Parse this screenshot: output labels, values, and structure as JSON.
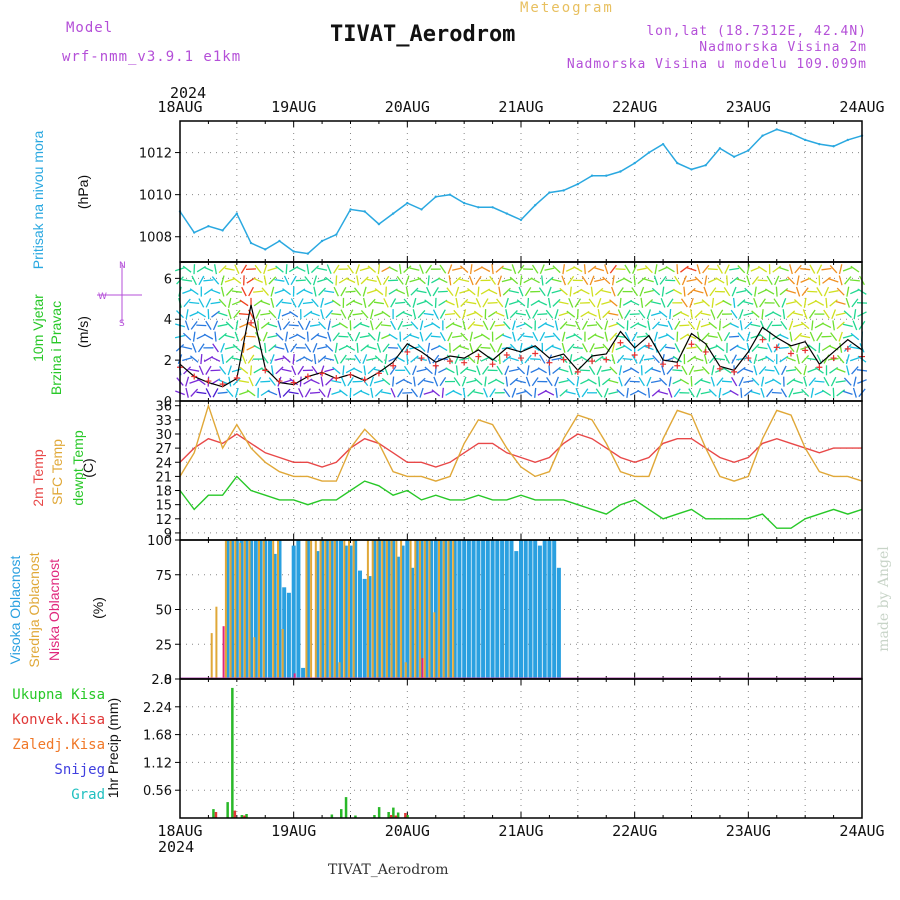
{
  "header": {
    "model_label": "Model",
    "model_name": "wrf-nmm_v3.9.1 e1km",
    "title": "TIVAT_Aerodrom",
    "subtitle": "Meteogram",
    "lonlat": "lon,lat (18.7312E, 42.4N)",
    "elev": "Nadmorska Visina 2m",
    "elev_model": "Nadmorska Visina u modelu 109.099m",
    "footer_station": "TIVAT_Aerodrom",
    "credit": "made by Angel"
  },
  "axis": {
    "year": "2024",
    "dates": [
      "18AUG",
      "19AUG",
      "20AUG",
      "21AUG",
      "22AUG",
      "23AUG",
      "24AUG"
    ]
  },
  "labels": {
    "p1_name": "Pritisak na nivou mora",
    "p1_unit": "(hPa)",
    "p2_name1": "10m Vjetar",
    "p2_name2": "Brzina i Pravac",
    "p2_unit": "(m/s)",
    "p3_name1": "2m Temp",
    "p3_name2": "SFC Temp",
    "p3_name3": "dewpt Temp",
    "p3_unit": "(C)",
    "p4_name1": "Visoka Oblacnost",
    "p4_name2": "Srednja Oblacnost",
    "p4_name3": "Niska Oblacnost",
    "p4_unit": "(%)",
    "p5_name": "1hr Precip (mm)",
    "precip_legend": [
      "Ukupna Kisa",
      "Konvek.Kisa",
      "Zaledj.Kisa",
      "Snijeg",
      "Grad"
    ]
  },
  "compass": {
    "n": "N",
    "s": "S",
    "w": "W",
    "e": "E"
  },
  "colors": {
    "pressure": "#2aa8e0",
    "temp2m": "#e84848",
    "sfc": "#e0a838",
    "dew": "#28c828",
    "high_cloud": "#2aa0e0",
    "mid_cloud": "#e0a838",
    "low_cloud": "#e0287c",
    "total_rain": "#28b828",
    "conv_rain": "#e03838",
    "frz_rain": "#f07828",
    "snow": "#4040e0",
    "hail": "#20c0c0",
    "model_purple": "#b44fd8",
    "meteogram_gold": "#e8c060"
  },
  "chart_data": [
    {
      "type": "line",
      "name": "pressure",
      "ylabel": "(hPa)",
      "yticks": [
        1008,
        1010,
        1012
      ],
      "ylim": [
        1006.8,
        1013.5
      ],
      "x_hours": [
        0,
        3,
        6,
        9,
        12,
        15,
        18,
        21,
        24,
        27,
        30,
        33,
        36,
        39,
        42,
        45,
        48,
        51,
        54,
        57,
        60,
        63,
        66,
        69,
        72,
        75,
        78,
        81,
        84,
        87,
        90,
        93,
        96,
        99,
        102,
        105,
        108,
        111,
        114,
        117,
        120,
        123,
        126,
        129,
        132,
        135,
        138,
        141,
        144
      ],
      "values": [
        1009.2,
        1008.2,
        1008.5,
        1008.3,
        1009.1,
        1007.7,
        1007.4,
        1007.8,
        1007.3,
        1007.2,
        1007.8,
        1008.1,
        1009.3,
        1009.2,
        1008.6,
        1009.1,
        1009.6,
        1009.3,
        1009.9,
        1010.0,
        1009.6,
        1009.4,
        1009.4,
        1009.1,
        1008.8,
        1009.5,
        1010.1,
        1010.2,
        1010.5,
        1010.9,
        1010.9,
        1011.1,
        1011.5,
        1012.0,
        1012.4,
        1011.5,
        1011.2,
        1011.4,
        1012.2,
        1011.8,
        1012.1,
        1012.8,
        1013.1,
        1012.9,
        1012.6,
        1012.4,
        1012.3,
        1012.6,
        1012.8
      ],
      "grid": true
    },
    {
      "type": "line",
      "name": "wind speed",
      "ylabel": "(m/s)",
      "yticks": [
        0,
        2,
        4,
        6
      ],
      "ylim": [
        0,
        6.8
      ],
      "x_hours": [
        0,
        3,
        6,
        9,
        12,
        15,
        18,
        21,
        24,
        27,
        30,
        33,
        36,
        39,
        42,
        45,
        48,
        51,
        54,
        57,
        60,
        63,
        66,
        69,
        72,
        75,
        78,
        81,
        84,
        87,
        90,
        93,
        96,
        99,
        102,
        105,
        108,
        111,
        114,
        117,
        120,
        123,
        126,
        129,
        132,
        135,
        138,
        141,
        144
      ],
      "values": [
        1.8,
        1.2,
        0.9,
        0.7,
        1.1,
        4.7,
        1.6,
        0.9,
        0.8,
        1.2,
        1.4,
        1.1,
        1.3,
        1.0,
        1.4,
        1.9,
        2.8,
        2.4,
        1.9,
        2.2,
        2.1,
        2.5,
        2.0,
        2.6,
        2.4,
        2.7,
        2.1,
        2.3,
        1.5,
        2.2,
        2.3,
        3.4,
        2.6,
        3.2,
        2.0,
        1.9,
        3.3,
        2.8,
        1.7,
        1.5,
        2.4,
        3.6,
        3.1,
        2.7,
        2.9,
        1.8,
        2.4,
        3.0,
        2.5
      ],
      "grid": true
    },
    {
      "type": "line",
      "name": "temperature",
      "ylabel": "(C)",
      "yticks": [
        9,
        12,
        15,
        18,
        21,
        24,
        27,
        30,
        33,
        36
      ],
      "ylim": [
        7.5,
        37
      ],
      "x_hours": [
        0,
        3,
        6,
        9,
        12,
        15,
        18,
        21,
        24,
        27,
        30,
        33,
        36,
        39,
        42,
        45,
        48,
        51,
        54,
        57,
        60,
        63,
        66,
        69,
        72,
        75,
        78,
        81,
        84,
        87,
        90,
        93,
        96,
        99,
        102,
        105,
        108,
        111,
        114,
        117,
        120,
        123,
        126,
        129,
        132,
        135,
        138,
        141,
        144
      ],
      "series": [
        {
          "name": "2m Temp",
          "values": [
            24,
            27,
            29,
            28,
            30,
            28,
            26,
            25,
            24,
            24,
            23,
            24,
            27,
            29,
            28,
            26,
            24,
            24,
            23,
            24,
            26,
            28,
            28,
            26,
            25,
            24,
            25,
            28,
            30,
            29,
            27,
            25,
            24,
            25,
            28,
            29,
            29,
            27,
            25,
            24,
            25,
            28,
            29,
            28,
            27,
            26,
            27,
            27,
            27
          ]
        },
        {
          "name": "SFC Temp",
          "values": [
            21,
            26,
            36,
            27,
            32,
            27,
            24,
            22,
            21,
            21,
            20,
            20,
            27,
            31,
            28,
            22,
            21,
            21,
            20,
            21,
            28,
            33,
            32,
            27,
            23,
            21,
            22,
            29,
            34,
            33,
            28,
            22,
            21,
            21,
            29,
            35,
            34,
            27,
            21,
            20,
            21,
            29,
            35,
            34,
            27,
            22,
            21,
            21,
            20
          ]
        },
        {
          "name": "dewpt Temp",
          "values": [
            18,
            14,
            17,
            17,
            21,
            18,
            17,
            16,
            16,
            15,
            16,
            16,
            18,
            20,
            19,
            17,
            18,
            16,
            17,
            16,
            16,
            17,
            16,
            16,
            17,
            16,
            16,
            16,
            15,
            14,
            13,
            15,
            16,
            14,
            12,
            13,
            14,
            12,
            12,
            12,
            12,
            13,
            10,
            10,
            12,
            13,
            14,
            13,
            14
          ]
        }
      ],
      "grid": true
    },
    {
      "type": "bar",
      "name": "cloud cover",
      "ylabel": "(%)",
      "yticks": [
        0,
        25,
        50,
        75,
        100
      ],
      "ylim": [
        0,
        100
      ],
      "series": [
        {
          "name": "Visoka Oblacnost",
          "x_hours": [
            9,
            10,
            11,
            12,
            13,
            14,
            15,
            16,
            17,
            18,
            19,
            20,
            21,
            22,
            23,
            24,
            25,
            26,
            27,
            28,
            29,
            30,
            31,
            32,
            33,
            34,
            35,
            36,
            37,
            38,
            39,
            40,
            41,
            42,
            43,
            44,
            45,
            46,
            47,
            48,
            49,
            50,
            51,
            52,
            53,
            54,
            55,
            56,
            57,
            58,
            59,
            60,
            61,
            62,
            63,
            64,
            65,
            66,
            67,
            68,
            69,
            70,
            71,
            72,
            73,
            74,
            75,
            76,
            77,
            78,
            79,
            80,
            81
          ],
          "values": [
            0,
            100,
            100,
            100,
            100,
            100,
            100,
            100,
            100,
            100,
            100,
            90,
            100,
            66,
            62,
            96,
            100,
            8,
            100,
            0,
            92,
            100,
            100,
            100,
            100,
            100,
            96,
            96,
            100,
            78,
            72,
            74,
            100,
            100,
            100,
            100,
            100,
            88,
            96,
            100,
            80,
            100,
            100,
            100,
            100,
            100,
            100,
            100,
            100,
            100,
            100,
            100,
            100,
            100,
            100,
            100,
            100,
            100,
            100,
            100,
            100,
            100,
            92,
            100,
            100,
            100,
            100,
            96,
            100,
            100,
            100,
            80,
            0
          ]
        },
        {
          "name": "Srednja Oblacnost",
          "x_hours": [
            7,
            8,
            10,
            11,
            12,
            13,
            14,
            15,
            16,
            17,
            18,
            20,
            21,
            22,
            27,
            28,
            29,
            30,
            31,
            32,
            33,
            34,
            35,
            36,
            37,
            40,
            41,
            42,
            43,
            44,
            45,
            46,
            47,
            48,
            49,
            50,
            51,
            52,
            53,
            54,
            55,
            56,
            57,
            58
          ],
          "values": [
            33,
            52,
            100,
            100,
            100,
            98,
            100,
            100,
            30,
            100,
            100,
            100,
            100,
            36,
            100,
            100,
            100,
            100,
            100,
            100,
            100,
            12,
            100,
            100,
            100,
            100,
            100,
            100,
            100,
            100,
            100,
            100,
            100,
            12,
            100,
            100,
            100,
            100,
            100,
            48,
            100,
            100,
            100,
            100
          ]
        },
        {
          "name": "Niska Oblacnost",
          "x_hours": [
            9,
            24,
            51
          ],
          "values": [
            38,
            4,
            15
          ]
        }
      ],
      "grid": true
    },
    {
      "type": "bar",
      "name": "precipitation",
      "ylabel": "1hr Precip (mm)",
      "yticks": [
        0.56,
        1.12,
        1.68,
        2.24,
        2.8
      ],
      "ylim": [
        0,
        2.8
      ],
      "series": [
        {
          "name": "Ukupna Kisa",
          "x_hours": [
            7,
            10,
            11,
            13,
            14,
            32,
            34,
            35,
            37,
            41,
            42,
            44,
            45,
            46,
            48
          ],
          "values": [
            0.18,
            0.32,
            2.62,
            0.06,
            0.08,
            0.07,
            0.18,
            0.42,
            0.05,
            0.06,
            0.22,
            0.12,
            0.21,
            0.11,
            0.06
          ]
        },
        {
          "name": "Konvek.Kisa",
          "x_hours": [
            7,
            11,
            13,
            44,
            45,
            47
          ],
          "values": [
            0.12,
            0.15,
            0.05,
            0.06,
            0.05,
            0.1
          ]
        }
      ],
      "grid": true
    }
  ]
}
